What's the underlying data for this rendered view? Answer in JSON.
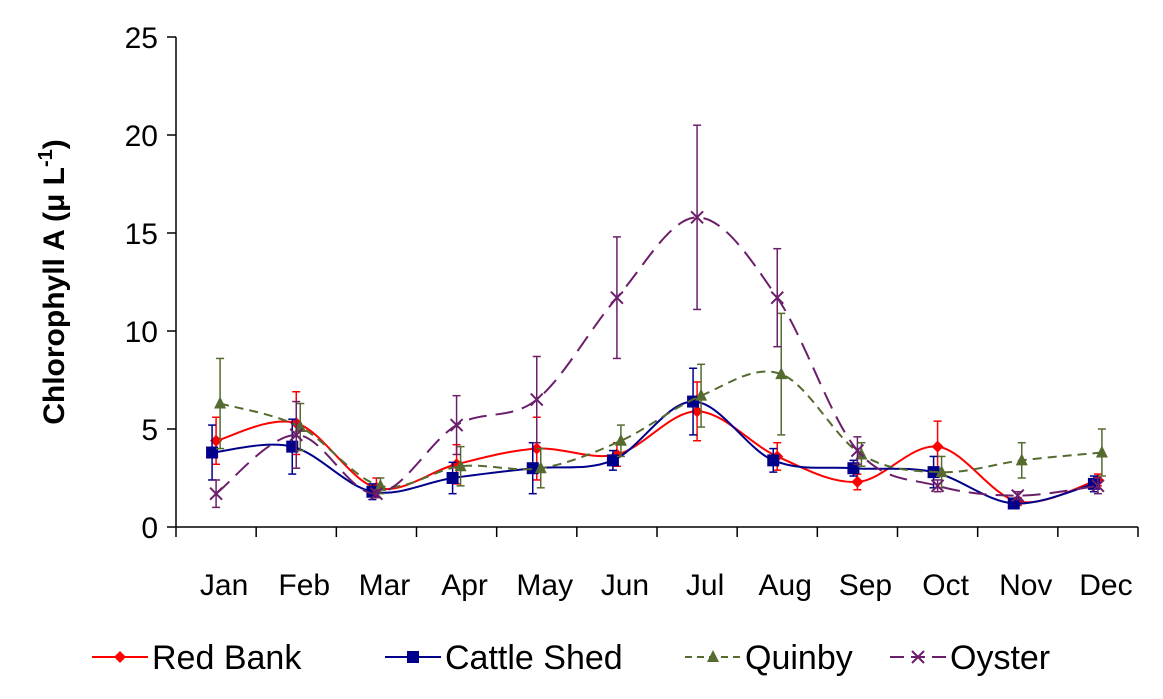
{
  "chart_data": {
    "type": "line",
    "categories": [
      "Jan",
      "Feb",
      "Mar",
      "Apr",
      "May",
      "Jun",
      "Jul",
      "Aug",
      "Sep",
      "Oct",
      "Nov",
      "Dec"
    ],
    "ylabel_main": "Chlorophyll A (μ L",
    "ylabel_sup": "-1",
    "ylabel_close": ")",
    "ylim": [
      0,
      25
    ],
    "yticks": [
      "0",
      "5",
      "10",
      "15",
      "20",
      "25"
    ],
    "legend_position": "bottom",
    "grid": false,
    "series": [
      {
        "name": "Red Bank",
        "color": "#ff0000",
        "marker": "diamond",
        "dash": "solid",
        "values": [
          4.4,
          5.3,
          2.0,
          3.2,
          4.0,
          3.7,
          5.9,
          3.6,
          2.3,
          4.1,
          1.3,
          2.4
        ],
        "errors": [
          1.2,
          1.6,
          0.5,
          1.0,
          1.6,
          0.6,
          1.5,
          0.7,
          0.4,
          1.3,
          0.2,
          0.3
        ]
      },
      {
        "name": "Cattle Shed",
        "color": "#00008b",
        "marker": "square",
        "dash": "solid",
        "values": [
          3.8,
          4.1,
          1.8,
          2.5,
          3.0,
          3.4,
          6.4,
          3.4,
          3.0,
          2.8,
          1.2,
          2.2
        ],
        "errors": [
          1.4,
          1.4,
          0.4,
          0.8,
          1.3,
          0.5,
          1.7,
          0.6,
          0.4,
          0.8,
          0.2,
          0.4
        ]
      },
      {
        "name": "Quinby",
        "color": "#556b2f",
        "marker": "triangle",
        "dash": "short",
        "values": [
          6.3,
          5.1,
          2.1,
          3.1,
          3.0,
          4.4,
          6.7,
          7.8,
          3.7,
          2.8,
          3.4,
          3.8
        ],
        "errors": [
          2.3,
          1.2,
          0.4,
          1.0,
          1.0,
          0.8,
          1.6,
          3.1,
          0.6,
          0.8,
          0.9,
          1.2
        ]
      },
      {
        "name": "Oyster",
        "color": "#6b1f6b",
        "marker": "x",
        "dash": "long",
        "values": [
          1.7,
          4.7,
          1.7,
          5.2,
          6.5,
          11.7,
          15.8,
          11.7,
          3.9,
          2.1,
          1.6,
          2.1
        ],
        "errors": [
          0.7,
          1.7,
          0.2,
          1.5,
          2.2,
          3.1,
          4.7,
          2.5,
          0.7,
          0.3,
          0.2,
          0.4
        ]
      }
    ]
  }
}
